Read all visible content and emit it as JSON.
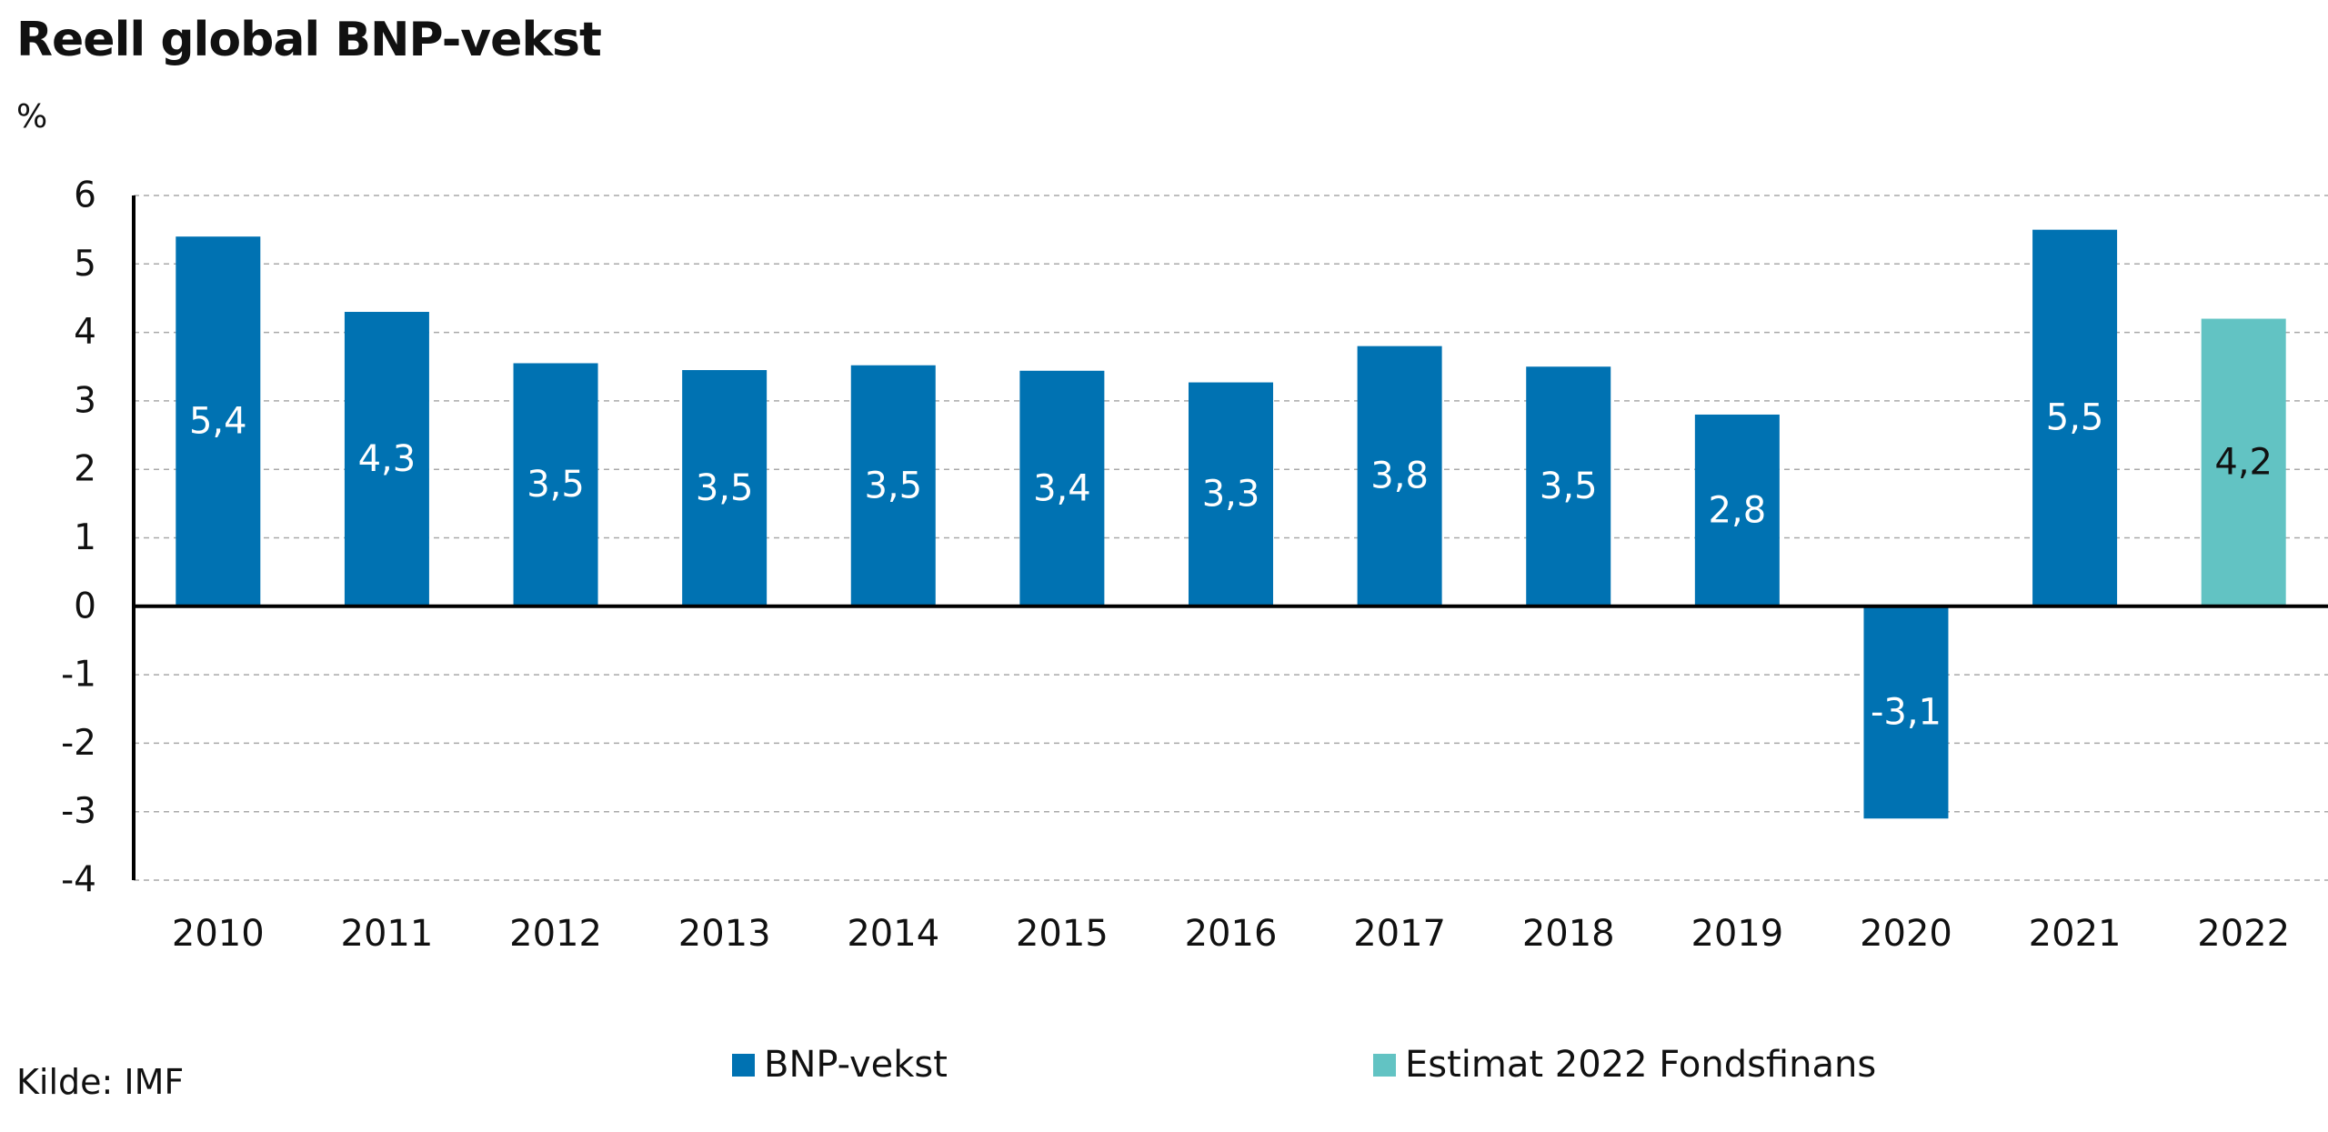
{
  "title": "Reell global BNP-vekst",
  "unit": "%",
  "source": "Kilde: IMF",
  "colors": {
    "actual": "#0072b2",
    "estimate": "#62c3c3",
    "grid": "#a9a9a9",
    "axis": "#000000"
  },
  "legend": {
    "actual_label": "BNP-vekst",
    "estimate_label": "Estimat 2022 Fondsfinans"
  },
  "chart_data": {
    "type": "bar",
    "title": "Reell global BNP-vekst",
    "ylabel": "%",
    "xlabel": "",
    "ylim": [
      -4,
      6
    ],
    "yticks": [
      6,
      5,
      4,
      3,
      2,
      1,
      0,
      -1,
      -2,
      -3,
      -4
    ],
    "grid": true,
    "legend_position": "bottom",
    "categories": [
      "2010",
      "2011",
      "2012",
      "2013",
      "2014",
      "2015",
      "2016",
      "2017",
      "2018",
      "2019",
      "2020",
      "2021",
      "2022"
    ],
    "series": [
      {
        "name": "BNP-vekst",
        "values": [
          5.4,
          4.3,
          3.55,
          3.45,
          3.52,
          3.44,
          3.27,
          3.8,
          3.5,
          2.8,
          -3.1,
          5.5,
          null
        ]
      },
      {
        "name": "Estimat 2022 Fondsfinans",
        "values": [
          null,
          null,
          null,
          null,
          null,
          null,
          null,
          null,
          null,
          null,
          null,
          null,
          4.2
        ]
      }
    ],
    "data_labels": [
      "5,4",
      "4,3",
      "3,5",
      "3,5",
      "3,5",
      "3,4",
      "3,3",
      "3,8",
      "3,5",
      "2,8",
      "-3,1",
      "5,5",
      "4,2"
    ]
  }
}
